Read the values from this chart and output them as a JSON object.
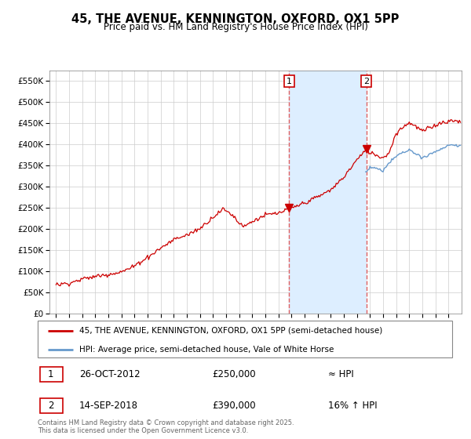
{
  "title": "45, THE AVENUE, KENNINGTON, OXFORD, OX1 5PP",
  "subtitle": "Price paid vs. HM Land Registry's House Price Index (HPI)",
  "legend_line1": "45, THE AVENUE, KENNINGTON, OXFORD, OX1 5PP (semi-detached house)",
  "legend_line2": "HPI: Average price, semi-detached house, Vale of White Horse",
  "annotation1_label": "1",
  "annotation1_date": "26-OCT-2012",
  "annotation1_price": "£250,000",
  "annotation1_hpi": "≈ HPI",
  "annotation2_label": "2",
  "annotation2_date": "14-SEP-2018",
  "annotation2_price": "£390,000",
  "annotation2_hpi": "16% ↑ HPI",
  "footer": "Contains HM Land Registry data © Crown copyright and database right 2025.\nThis data is licensed under the Open Government Licence v3.0.",
  "ylim": [
    0,
    575000
  ],
  "yticks": [
    0,
    50000,
    100000,
    150000,
    200000,
    250000,
    300000,
    350000,
    400000,
    450000,
    500000,
    550000
  ],
  "x_start_year": 1995,
  "x_end_year": 2025,
  "sale1_year": 2012.82,
  "sale1_price": 250000,
  "sale2_year": 2018.71,
  "sale2_price": 390000,
  "red_color": "#cc0000",
  "blue_color": "#6699cc",
  "shade_color": "#ddeeff",
  "vline_color": "#e06060",
  "annotation_box_color": "#cc0000",
  "grid_color": "#cccccc",
  "bg_color": "#ffffff"
}
